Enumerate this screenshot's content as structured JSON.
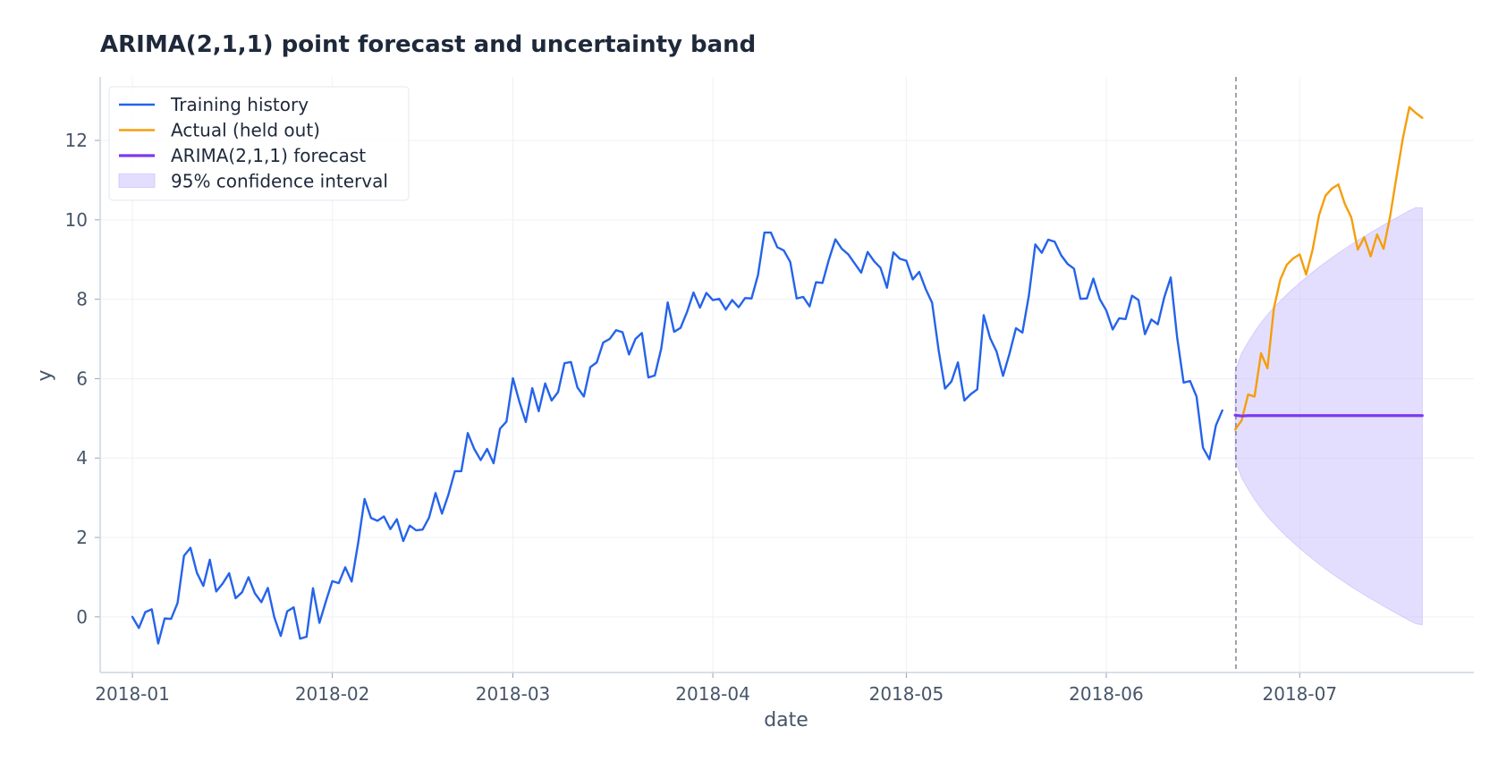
{
  "chart_data": {
    "type": "line",
    "title": "ARIMA(2,1,1) point forecast and uncertainty band",
    "xlabel": "date",
    "ylabel": "y",
    "x_range": [
      "2017-12-27",
      "2018-07-28"
    ],
    "ylim": [
      -1.4,
      13.6
    ],
    "x_ticks": [
      "2018-01-01",
      "2018-02-01",
      "2018-03-01",
      "2018-04-01",
      "2018-05-01",
      "2018-06-01",
      "2018-07-01"
    ],
    "x_tick_labels": [
      "2018-01",
      "2018-02",
      "2018-03",
      "2018-04",
      "2018-05",
      "2018-06",
      "2018-07"
    ],
    "y_ticks": [
      0,
      2,
      4,
      6,
      8,
      10,
      12
    ],
    "y_tick_labels": [
      "0",
      "2",
      "4",
      "6",
      "8",
      "10",
      "12"
    ],
    "grid": true,
    "legend_position": "top-left",
    "forecast_origin": "2018-06-20",
    "colors": {
      "history": "#2563eb",
      "actual": "#f59e0b",
      "forecast": "#7c3aed",
      "band": "#c4b5fd"
    },
    "series": [
      {
        "name": "Training history",
        "kind": "line",
        "x_start": "2018-01-01",
        "values": [
          0.0,
          -0.28,
          0.12,
          0.19,
          -0.67,
          -0.04,
          -0.05,
          0.35,
          1.54,
          1.74,
          1.11,
          0.78,
          1.44,
          0.64,
          0.84,
          1.1,
          0.47,
          0.62,
          1.0,
          0.59,
          0.37,
          0.73,
          -0.01,
          -0.48,
          0.14,
          0.24,
          -0.55,
          -0.5,
          0.72,
          -0.15,
          0.39,
          0.9,
          0.85,
          1.25,
          0.89,
          1.86,
          2.97,
          2.49,
          2.42,
          2.53,
          2.21,
          2.46,
          1.91,
          2.3,
          2.18,
          2.2,
          2.5,
          3.12,
          2.6,
          3.08,
          3.67,
          3.67,
          4.63,
          4.23,
          3.95,
          4.23,
          3.87,
          4.74,
          4.92,
          6.01,
          5.42,
          4.91,
          5.76,
          5.18,
          5.88,
          5.45,
          5.66,
          6.39,
          6.42,
          5.78,
          5.55,
          6.29,
          6.41,
          6.91,
          7.0,
          7.22,
          7.17,
          6.61,
          7.0,
          7.15,
          6.03,
          6.08,
          6.76,
          7.92,
          7.18,
          7.28,
          7.68,
          8.17,
          7.79,
          8.16,
          7.98,
          8.01,
          7.74,
          7.98,
          7.8,
          8.03,
          8.02,
          8.61,
          9.68,
          9.68,
          9.31,
          9.23,
          8.94,
          8.02,
          8.06,
          7.82,
          8.43,
          8.41,
          9.0,
          9.51,
          9.27,
          9.13,
          8.9,
          8.67,
          9.19,
          8.96,
          8.79,
          8.29,
          9.18,
          9.02,
          8.97,
          8.5,
          8.69,
          8.26,
          7.91,
          6.73,
          5.75,
          5.93,
          6.41,
          5.45,
          5.61,
          5.73,
          7.6,
          7.02,
          6.68,
          6.07,
          6.63,
          7.27,
          7.16,
          8.09,
          9.38,
          9.17,
          9.5,
          9.45,
          9.11,
          8.89,
          8.77,
          8.01,
          8.02,
          8.52,
          8.0,
          7.72,
          7.24,
          7.52,
          7.5,
          8.09,
          7.98,
          7.12,
          7.49,
          7.37,
          8.05,
          8.55,
          7.03,
          5.9,
          5.94,
          5.55,
          4.26,
          3.97,
          4.82,
          5.2
        ]
      },
      {
        "name": "Actual (held out)",
        "kind": "line",
        "x_start": "2018-06-21",
        "values": [
          4.72,
          4.95,
          5.6,
          5.55,
          6.64,
          6.26,
          7.78,
          8.5,
          8.87,
          9.03,
          9.13,
          8.62,
          9.25,
          10.12,
          10.61,
          10.79,
          10.89,
          10.4,
          10.06,
          9.25,
          9.56,
          9.08,
          9.63,
          9.27,
          10.07,
          11.08,
          12.06,
          12.84,
          12.69,
          12.57
        ]
      },
      {
        "name": "ARIMA(2,1,1) forecast",
        "kind": "line",
        "x_start": "2018-06-21",
        "values": [
          5.08,
          5.06,
          5.07,
          5.07,
          5.07,
          5.07,
          5.07,
          5.07,
          5.07,
          5.07,
          5.07,
          5.07,
          5.07,
          5.07,
          5.07,
          5.07,
          5.07,
          5.07,
          5.07,
          5.07,
          5.07,
          5.07,
          5.07,
          5.07,
          5.07,
          5.07,
          5.07,
          5.07,
          5.07,
          5.07
        ]
      },
      {
        "name": "95% confidence interval",
        "kind": "band",
        "x_start": "2018-06-21",
        "lower": [
          3.95,
          3.5,
          3.22,
          2.96,
          2.73,
          2.53,
          2.35,
          2.18,
          2.02,
          1.87,
          1.73,
          1.59,
          1.46,
          1.33,
          1.21,
          1.09,
          0.98,
          0.87,
          0.76,
          0.66,
          0.56,
          0.46,
          0.37,
          0.27,
          0.18,
          0.09,
          0.0,
          -0.09,
          -0.17,
          -0.2
        ],
        "upper": [
          6.2,
          6.64,
          6.92,
          7.18,
          7.41,
          7.61,
          7.79,
          7.96,
          8.12,
          8.27,
          8.41,
          8.55,
          8.68,
          8.81,
          8.93,
          9.05,
          9.16,
          9.27,
          9.38,
          9.48,
          9.58,
          9.68,
          9.77,
          9.87,
          9.96,
          10.05,
          10.14,
          10.23,
          10.31,
          10.3
        ]
      }
    ]
  }
}
